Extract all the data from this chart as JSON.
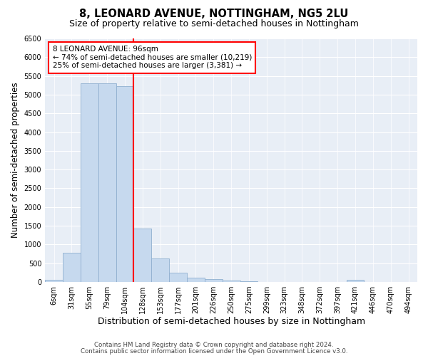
{
  "title": "8, LEONARD AVENUE, NOTTINGHAM, NG5 2LU",
  "subtitle": "Size of property relative to semi-detached houses in Nottingham",
  "xlabel": "Distribution of semi-detached houses by size in Nottingham",
  "ylabel": "Number of semi-detached properties",
  "bin_labels": [
    "6sqm",
    "31sqm",
    "55sqm",
    "79sqm",
    "104sqm",
    "128sqm",
    "153sqm",
    "177sqm",
    "201sqm",
    "226sqm",
    "250sqm",
    "275sqm",
    "299sqm",
    "323sqm",
    "348sqm",
    "372sqm",
    "397sqm",
    "421sqm",
    "446sqm",
    "470sqm",
    "494sqm"
  ],
  "bar_values": [
    50,
    780,
    5300,
    5300,
    5230,
    1430,
    620,
    250,
    120,
    70,
    30,
    10,
    5,
    5,
    2,
    1,
    1,
    50,
    1,
    1,
    0
  ],
  "bar_color": "#c6d9ee",
  "bar_edgecolor": "#90b0d0",
  "red_line_index": 4,
  "annotation_line1": "8 LEONARD AVENUE: 96sqm",
  "annotation_line2": "← 74% of semi-detached houses are smaller (10,219)",
  "annotation_line3": "25% of semi-detached houses are larger (3,381) →",
  "ylim": [
    0,
    6500
  ],
  "footer1": "Contains HM Land Registry data © Crown copyright and database right 2024.",
  "footer2": "Contains public sector information licensed under the Open Government Licence v3.0.",
  "bg_color": "#e8eef6",
  "title_fontsize": 10.5,
  "subtitle_fontsize": 9,
  "tick_fontsize": 7,
  "ylabel_fontsize": 8.5,
  "xlabel_fontsize": 9
}
